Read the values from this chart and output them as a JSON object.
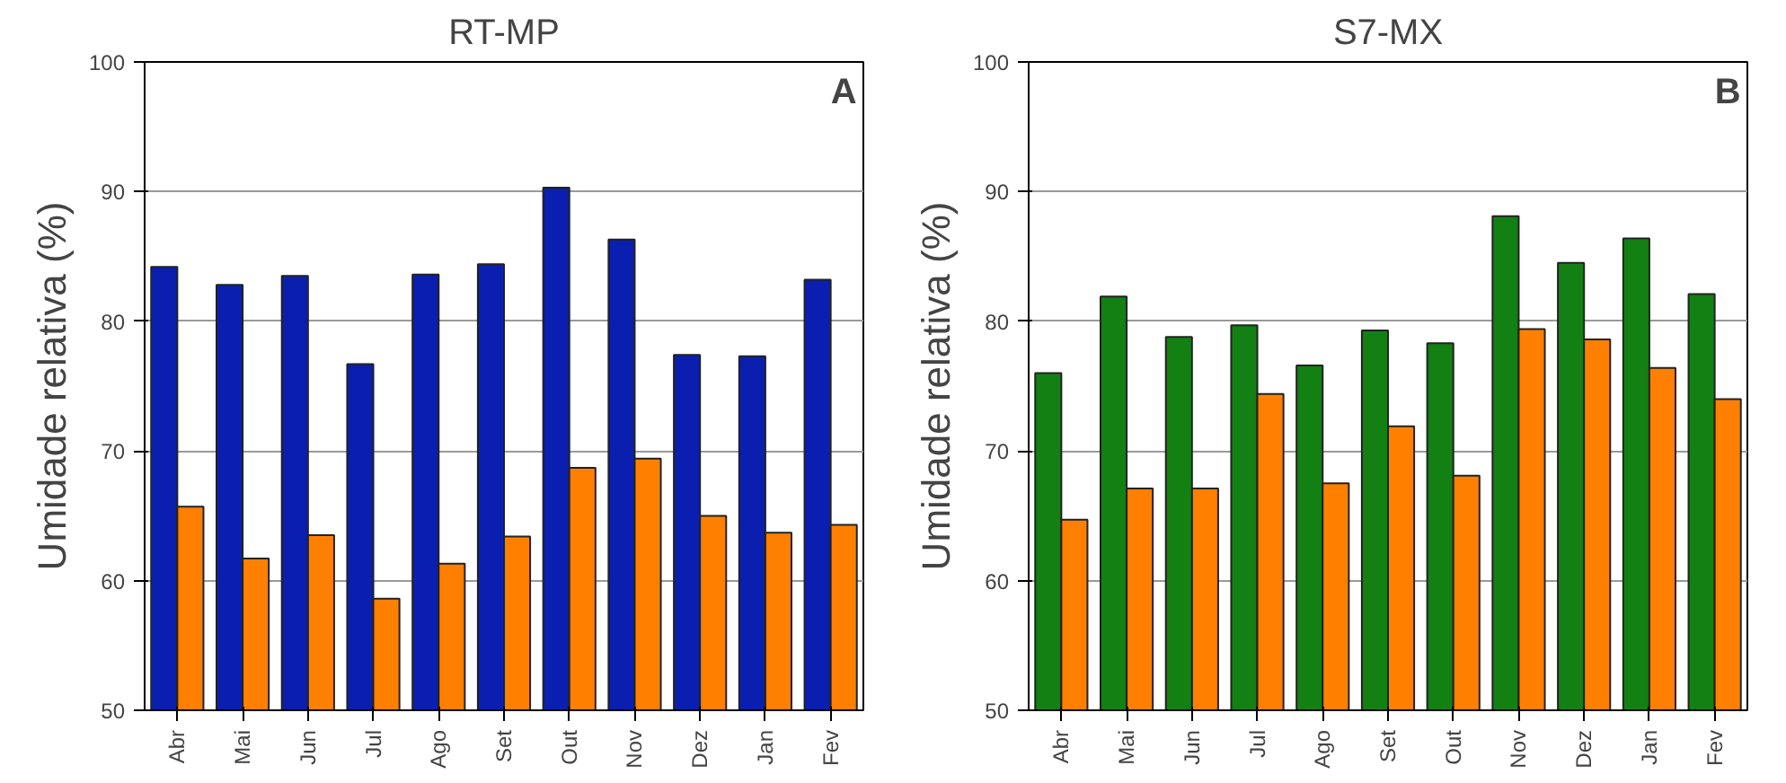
{
  "chart_data": [
    {
      "type": "bar",
      "title": "RT-MP",
      "ylabel": "Umidade relativa (%)",
      "annotations": [
        "A"
      ],
      "categories": [
        "Abr",
        "Mai",
        "Jun",
        "Jul",
        "Ago",
        "Set",
        "Out",
        "Nov",
        "Dez",
        "Jan",
        "Fev"
      ],
      "series": [
        {
          "color": "#0a1fb0",
          "values": [
            84.2,
            82.8,
            83.5,
            76.7,
            83.6,
            84.4,
            90.3,
            86.3,
            77.4,
            77.3,
            83.2
          ]
        },
        {
          "color": "#ff8000",
          "values": [
            65.7,
            61.7,
            63.5,
            58.6,
            61.3,
            63.4,
            68.7,
            69.4,
            65.0,
            63.7,
            64.3
          ]
        }
      ],
      "ylim": [
        50,
        100
      ],
      "yticks": [
        50,
        60,
        70,
        80,
        90,
        100
      ],
      "grid": "y"
    },
    {
      "type": "bar",
      "title": "S7-MX",
      "ylabel": "Umidade relativa (%)",
      "annotations": [
        "B"
      ],
      "categories": [
        "Abr",
        "Mai",
        "Jun",
        "Jul",
        "Ago",
        "Set",
        "Out",
        "Nov",
        "Dez",
        "Jan",
        "Fev"
      ],
      "series": [
        {
          "color": "#128012",
          "values": [
            76.0,
            81.9,
            78.8,
            79.7,
            76.6,
            79.3,
            78.3,
            88.1,
            84.5,
            86.4,
            82.1
          ]
        },
        {
          "color": "#ff8000",
          "values": [
            64.7,
            67.1,
            67.1,
            74.4,
            67.5,
            71.9,
            68.1,
            79.4,
            78.6,
            76.4,
            74.0
          ]
        }
      ],
      "ylim": [
        50,
        100
      ],
      "yticks": [
        50,
        60,
        70,
        80,
        90,
        100
      ],
      "grid": "y"
    }
  ]
}
